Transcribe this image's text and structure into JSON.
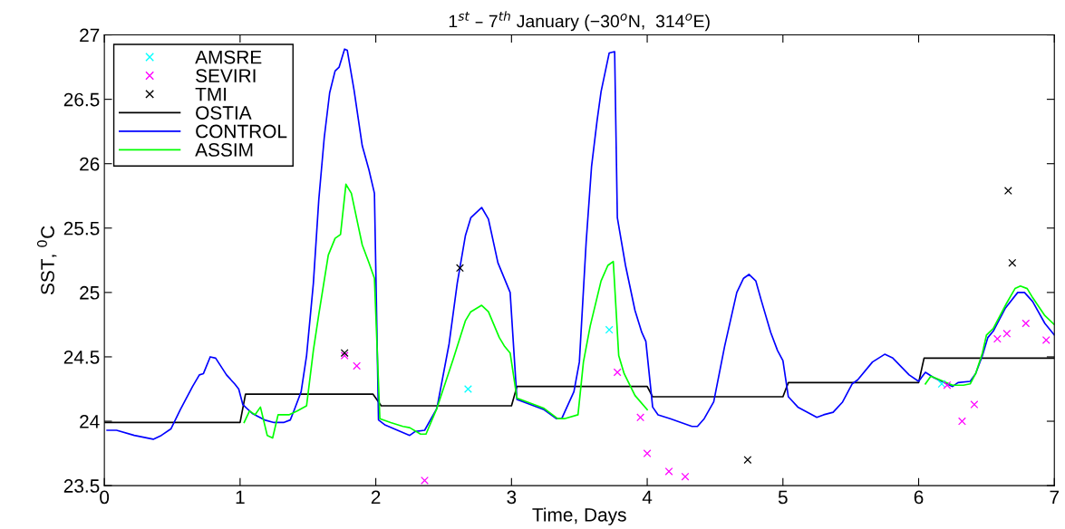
{
  "chart_data": {
    "type": "line",
    "title": "1$^{st}$ – 7$^{th}$ January (−30$^{o}$N,  314$^{o}$E)",
    "xlabel": "Time, Days",
    "ylabel": "SST, $^{0}$C",
    "xlim": [
      0,
      7
    ],
    "ylim": [
      23.5,
      27
    ],
    "xticks": [
      0,
      1,
      2,
      3,
      4,
      5,
      6,
      7
    ],
    "yticks": [
      23.5,
      24,
      24.5,
      25,
      25.5,
      26,
      26.5,
      27
    ],
    "grid": false,
    "legend": "top left",
    "series": [
      {
        "name": "AMSRE",
        "type": "scatter",
        "marker": "cross",
        "color": "#00ffff",
        "x": [
          2.68,
          3.72,
          6.17
        ],
        "values": [
          24.25,
          24.71,
          24.29
        ]
      },
      {
        "name": "SEVIRI",
        "type": "scatter",
        "marker": "cross",
        "color": "#ff00ff",
        "x": [
          1.77,
          1.86,
          2.36,
          3.78,
          3.95,
          4.0,
          4.16,
          4.28,
          6.21,
          6.32,
          6.41,
          6.58,
          6.65,
          6.79,
          6.94
        ],
        "values": [
          24.51,
          24.43,
          23.54,
          24.38,
          24.03,
          23.75,
          23.61,
          23.57,
          24.28,
          24.0,
          24.13,
          24.64,
          24.68,
          24.76,
          24.63
        ]
      },
      {
        "name": "TMI",
        "type": "scatter",
        "marker": "cross",
        "color": "#000000",
        "x": [
          1.77,
          2.62,
          4.74,
          6.66,
          6.69
        ],
        "values": [
          24.53,
          25.19,
          23.7,
          25.79,
          25.23
        ]
      },
      {
        "name": "OSTIA",
        "marker": "none",
        "line_style": "solid",
        "color": "#000000",
        "x": [
          0,
          1.0,
          1.04,
          1.98,
          2.04,
          3.0,
          3.04,
          4.0,
          4.04,
          5.0,
          5.04,
          6.0,
          6.04,
          7.0
        ],
        "values": [
          23.99,
          23.99,
          24.21,
          24.21,
          24.12,
          24.12,
          24.27,
          24.27,
          24.19,
          24.19,
          24.3,
          24.3,
          24.49,
          24.49
        ]
      },
      {
        "name": "CONTROL",
        "marker": "none",
        "line_style": "solid",
        "color": "#0000ff",
        "x": [
          0.02,
          0.09,
          0.22,
          0.36,
          0.42,
          0.49,
          0.56,
          0.65,
          0.7,
          0.73,
          0.78,
          0.82,
          0.9,
          0.96,
          0.99,
          1.02,
          1.09,
          1.18,
          1.25,
          1.32,
          1.37,
          1.4,
          1.45,
          1.49,
          1.54,
          1.58,
          1.62,
          1.66,
          1.7,
          1.73,
          1.77,
          1.79,
          1.84,
          1.9,
          1.95,
          1.99,
          2.02,
          2.07,
          2.25,
          2.29,
          2.36,
          2.45,
          2.54,
          2.6,
          2.66,
          2.7,
          2.78,
          2.83,
          2.9,
          2.99,
          3.04,
          3.24,
          3.33,
          3.37,
          3.46,
          3.5,
          3.55,
          3.59,
          3.63,
          3.66,
          3.72,
          3.76,
          3.78,
          3.84,
          3.91,
          3.96,
          3.99,
          4.04,
          4.08,
          4.17,
          4.33,
          4.37,
          4.42,
          4.49,
          4.57,
          4.66,
          4.71,
          4.75,
          4.8,
          4.84,
          4.91,
          4.96,
          5.0,
          5.04,
          5.11,
          5.25,
          5.3,
          5.37,
          5.44,
          5.51,
          5.55,
          5.66,
          5.75,
          5.81,
          5.93,
          6.0,
          6.05,
          6.11,
          6.25,
          6.29,
          6.38,
          6.42,
          6.47,
          6.51,
          6.55,
          6.64,
          6.73,
          6.78,
          6.84,
          6.93,
          7.0
        ],
        "values": [
          23.93,
          23.93,
          23.89,
          23.86,
          23.89,
          23.94,
          24.09,
          24.27,
          24.36,
          24.37,
          24.5,
          24.49,
          24.36,
          24.29,
          24.25,
          24.13,
          24.06,
          24.01,
          23.99,
          23.99,
          24.01,
          24.09,
          24.23,
          24.51,
          25.07,
          25.72,
          26.2,
          26.55,
          26.72,
          26.75,
          26.89,
          26.88,
          26.57,
          26.14,
          25.95,
          25.77,
          24.01,
          23.97,
          23.89,
          23.92,
          23.93,
          24.1,
          24.6,
          25.07,
          25.44,
          25.58,
          25.66,
          25.57,
          25.23,
          25.0,
          24.17,
          24.09,
          24.02,
          24.02,
          24.23,
          24.46,
          25.39,
          25.98,
          26.33,
          26.56,
          26.86,
          26.87,
          25.58,
          25.21,
          24.86,
          24.69,
          24.62,
          24.11,
          24.05,
          24.02,
          23.96,
          23.96,
          24.02,
          24.15,
          24.58,
          25.0,
          25.11,
          25.14,
          25.09,
          24.94,
          24.69,
          24.55,
          24.47,
          24.19,
          24.11,
          24.03,
          24.05,
          24.07,
          24.15,
          24.29,
          24.32,
          24.46,
          24.52,
          24.49,
          24.36,
          24.31,
          24.38,
          24.34,
          24.27,
          24.3,
          24.31,
          24.37,
          24.51,
          24.65,
          24.7,
          24.88,
          25.0,
          25.0,
          24.93,
          24.76,
          24.67
        ]
      },
      {
        "name": "ASSIM",
        "marker": "none",
        "line_style": "solid",
        "color": "#00ff00",
        "x": [
          1.03,
          1.07,
          1.11,
          1.15,
          1.2,
          1.24,
          1.28,
          1.36,
          1.42,
          1.49,
          1.54,
          1.58,
          1.65,
          1.7,
          1.74,
          1.78,
          1.82,
          1.9,
          1.95,
          1.99,
          2.03,
          2.11,
          2.2,
          2.25,
          2.33,
          2.37,
          2.45,
          2.57,
          2.66,
          2.7,
          2.78,
          2.83,
          2.91,
          2.95,
          2.99,
          3.04,
          3.24,
          3.34,
          3.39,
          3.49,
          3.53,
          3.58,
          3.66,
          3.71,
          3.75,
          3.79,
          3.83,
          3.91,
          4.0,
          5.0,
          6.05,
          6.09,
          6.25,
          6.33,
          6.38,
          6.42,
          6.47,
          6.5,
          6.55,
          6.65,
          6.71,
          6.75,
          6.8,
          6.84,
          6.93,
          7.0
        ],
        "values": [
          23.99,
          24.08,
          24.05,
          24.11,
          23.89,
          23.87,
          24.05,
          24.05,
          24.08,
          24.12,
          24.55,
          24.83,
          25.29,
          25.42,
          25.45,
          25.84,
          25.77,
          25.37,
          25.23,
          25.11,
          24.02,
          23.99,
          23.96,
          23.95,
          23.9,
          23.9,
          24.1,
          24.48,
          24.78,
          24.85,
          24.9,
          24.85,
          24.65,
          24.58,
          24.53,
          24.18,
          24.1,
          24.02,
          24.02,
          24.05,
          24.46,
          24.74,
          25.09,
          25.21,
          25.24,
          24.51,
          24.37,
          24.2,
          24.09,
          null,
          24.29,
          24.35,
          24.28,
          24.28,
          24.29,
          24.37,
          24.53,
          24.67,
          24.72,
          24.92,
          25.03,
          25.05,
          25.03,
          24.96,
          24.82,
          24.75
        ]
      }
    ]
  }
}
